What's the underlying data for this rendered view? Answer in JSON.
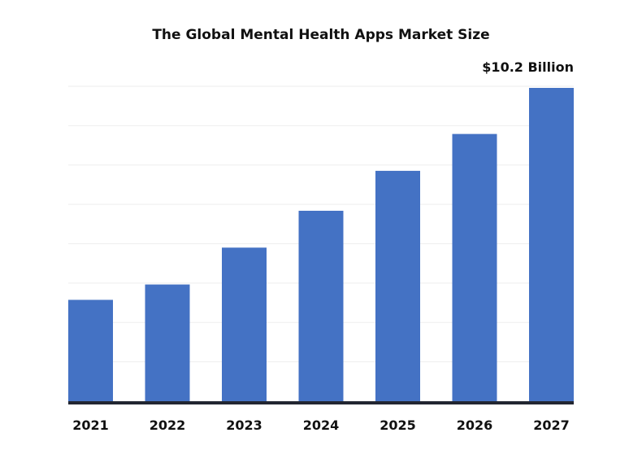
{
  "chart_data": {
    "type": "bar",
    "title": "The Global Mental Health Apps Market Size",
    "xlabel": "",
    "ylabel": "",
    "categories": [
      "2021",
      "2022",
      "2023",
      "2024",
      "2025",
      "2026",
      "2027"
    ],
    "values": [
      3.3,
      3.8,
      5.0,
      6.2,
      7.5,
      8.7,
      10.2
    ],
    "data_labels": [
      "",
      "",
      "",
      "",
      "",
      "",
      "$10.2 Billion"
    ],
    "ylim": [
      0,
      10.2
    ],
    "grid": true,
    "legend": "none",
    "colors": {
      "bar": "#4472c4",
      "axis": "#222631",
      "grid": "#eeeeee",
      "text": "#111111"
    }
  }
}
